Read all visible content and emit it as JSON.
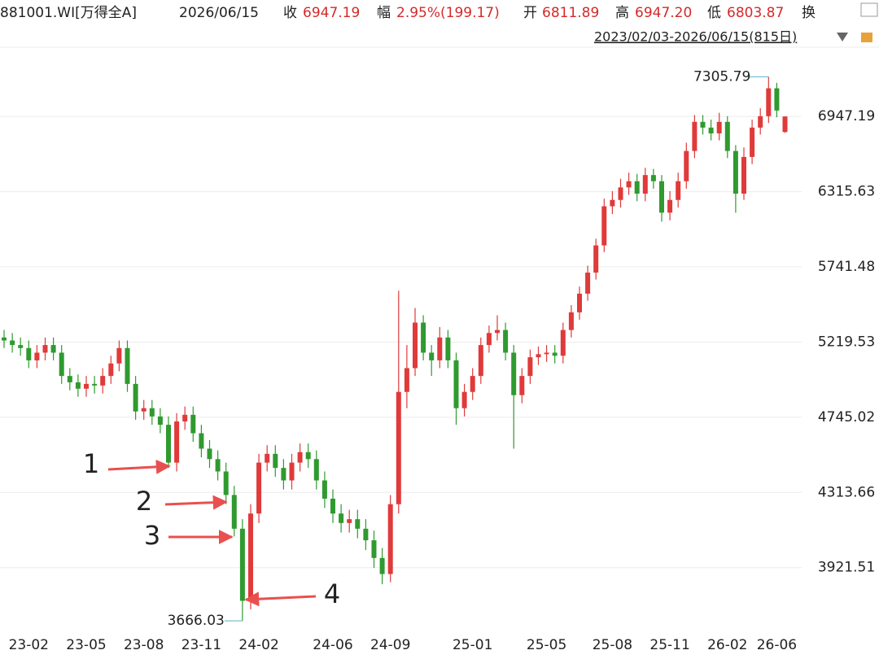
{
  "header": {
    "symbol": "881001.WI[万得全A]",
    "date": "2026/06/15",
    "close_label": "收",
    "close": "6947.19",
    "change_label": "幅",
    "change": "2.95%(199.17)",
    "open_label": "开",
    "open": "6811.89",
    "high_label": "高",
    "high": "6947.20",
    "low_label": "低",
    "low": "6803.87",
    "turnover_label": "换",
    "more": "..",
    "range": "2023/02/03-2026/06/15(815日)"
  },
  "chart_data": {
    "type": "candlestick",
    "log_scale": true,
    "grid": true,
    "up_color": "#e03a3a",
    "down_color": "#2f9a2f",
    "categories": [
      null,
      null,
      null,
      "23-02",
      null,
      null,
      null,
      null,
      null,
      null,
      "23-05",
      null,
      null,
      null,
      null,
      null,
      null,
      "23-08",
      null,
      null,
      null,
      null,
      null,
      null,
      "23-11",
      null,
      null,
      null,
      null,
      null,
      null,
      "24-02",
      null,
      null,
      null,
      null,
      null,
      null,
      null,
      null,
      "24-06",
      null,
      null,
      null,
      null,
      null,
      null,
      "24-09",
      null,
      null,
      null,
      null,
      null,
      null,
      null,
      null,
      null,
      "25-01",
      null,
      null,
      null,
      null,
      null,
      null,
      null,
      null,
      "25-05",
      null,
      null,
      null,
      null,
      null,
      null,
      null,
      "25-08",
      null,
      null,
      null,
      null,
      null,
      null,
      "25-11",
      null,
      null,
      null,
      null,
      null,
      null,
      "26-02",
      null,
      null,
      null,
      null,
      null,
      "26-06",
      null
    ],
    "open": [
      5250,
      5230,
      5200,
      5180,
      5100,
      5150,
      5200,
      5150,
      5000,
      4960,
      4920,
      4950,
      4940,
      5000,
      5080,
      5180,
      4950,
      4780,
      4800,
      4750,
      4700,
      4480,
      4720,
      4760,
      4650,
      4560,
      4500,
      4430,
      4300,
      4120,
      3760,
      4200,
      4480,
      4530,
      4450,
      4380,
      4480,
      4540,
      4500,
      4380,
      4280,
      4200,
      4150,
      4170,
      4120,
      4060,
      3970,
      3890,
      4250,
      4900,
      5050,
      5350,
      5150,
      5100,
      5250,
      5100,
      4800,
      4900,
      5000,
      5200,
      5280,
      5300,
      5150,
      4880,
      5000,
      5120,
      5140,
      5150,
      5130,
      5300,
      5420,
      5550,
      5700,
      5900,
      6200,
      6250,
      6350,
      6400,
      6300,
      6450,
      6400,
      6150,
      6250,
      6400,
      6650,
      6900,
      6850,
      6800,
      6900,
      6650,
      6300,
      6600,
      6850,
      6950,
      7200,
      6811.89
    ],
    "high": [
      5300,
      5280,
      5250,
      5230,
      5200,
      5250,
      5250,
      5200,
      5050,
      5010,
      5000,
      5000,
      5050,
      5130,
      5230,
      5230,
      5000,
      4850,
      4850,
      4800,
      4750,
      4770,
      4810,
      4810,
      4700,
      4610,
      4550,
      4480,
      4350,
      4170,
      4250,
      4530,
      4580,
      4580,
      4500,
      4530,
      4590,
      4590,
      4550,
      4430,
      4330,
      4250,
      4220,
      4220,
      4170,
      4110,
      4020,
      4300,
      5570,
      5200,
      5450,
      5400,
      5200,
      5320,
      5300,
      5150,
      4950,
      5050,
      5250,
      5330,
      5400,
      5350,
      5200,
      5050,
      5170,
      5190,
      5200,
      5200,
      5350,
      5470,
      5600,
      5750,
      5950,
      6260,
      6320,
      6420,
      6470,
      6460,
      6510,
      6500,
      6450,
      6320,
      6470,
      6720,
      6960,
      6960,
      6920,
      6980,
      6950,
      6700,
      6680,
      6920,
      7020,
      7305.79,
      7250,
      6947.2
    ],
    "low": [
      5180,
      5150,
      5130,
      5050,
      5050,
      5100,
      5100,
      4950,
      4910,
      4870,
      4870,
      4890,
      4890,
      4950,
      5030,
      4900,
      4730,
      4730,
      4700,
      4650,
      4450,
      4430,
      4670,
      4600,
      4510,
      4450,
      4380,
      4250,
      4080,
      3666.03,
      3720,
      4150,
      4430,
      4400,
      4330,
      4330,
      4430,
      4450,
      4330,
      4230,
      4150,
      4100,
      4100,
      4070,
      4010,
      3920,
      3840,
      3850,
      4200,
      4800,
      5000,
      5100,
      5000,
      5050,
      5050,
      4700,
      4750,
      4850,
      4950,
      5150,
      5230,
      5100,
      4560,
      4830,
      4950,
      5070,
      5090,
      5080,
      5080,
      5250,
      5370,
      5500,
      5650,
      5850,
      6140,
      6190,
      6290,
      6240,
      6240,
      6340,
      6080,
      6090,
      6190,
      6340,
      6590,
      6790,
      6740,
      6740,
      6590,
      6150,
      6250,
      6540,
      6790,
      6890,
      6940,
      6803.87
    ],
    "close": [
      5230,
      5200,
      5180,
      5100,
      5150,
      5200,
      5150,
      5000,
      4960,
      4920,
      4950,
      4940,
      5000,
      5080,
      5180,
      4950,
      4780,
      4800,
      4750,
      4700,
      4480,
      4720,
      4760,
      4650,
      4560,
      4500,
      4430,
      4300,
      4120,
      3760,
      4200,
      4480,
      4530,
      4450,
      4380,
      4480,
      4540,
      4500,
      4380,
      4280,
      4200,
      4150,
      4170,
      4120,
      4060,
      3970,
      3890,
      4250,
      4900,
      5050,
      5350,
      5150,
      5100,
      5250,
      5100,
      4800,
      4900,
      5000,
      5200,
      5280,
      5300,
      5150,
      4880,
      5000,
      5120,
      5140,
      5150,
      5130,
      5300,
      5420,
      5550,
      5700,
      5900,
      6200,
      6250,
      6350,
      6400,
      6300,
      6450,
      6400,
      6150,
      6250,
      6400,
      6650,
      6900,
      6850,
      6800,
      6900,
      6650,
      6300,
      6600,
      6850,
      6950,
      7200,
      7000,
      6947.19
    ],
    "ylim": [
      3610,
      7585
    ],
    "yticks": [
      3921.51,
      4313.66,
      4745.02,
      5219.53,
      5741.48,
      6315.63,
      6947.19
    ],
    "annotations": [
      {
        "text": "1"
      },
      {
        "text": "2"
      },
      {
        "text": "3"
      },
      {
        "text": "4"
      }
    ]
  }
}
